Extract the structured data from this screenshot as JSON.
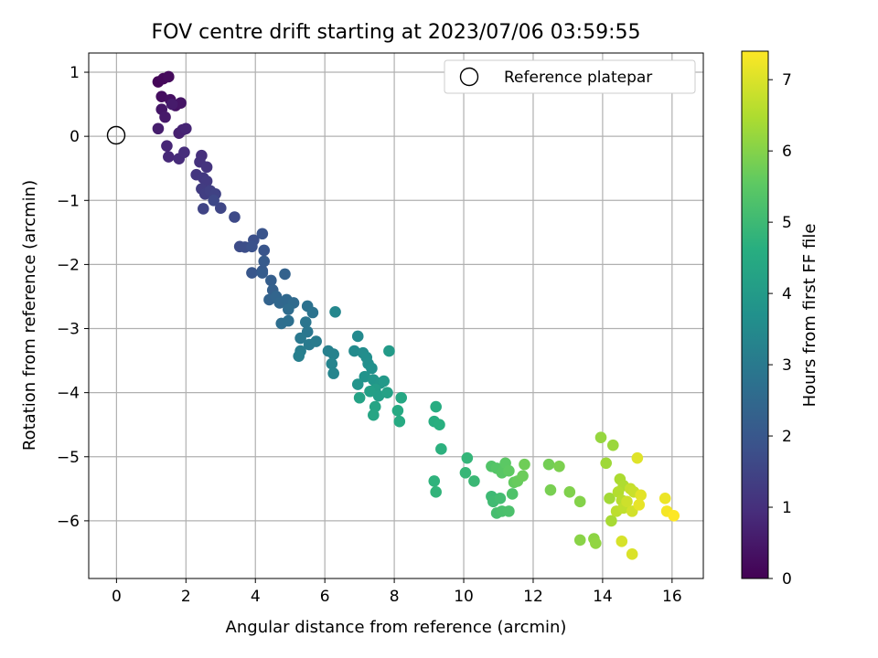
{
  "chart_data": {
    "type": "scatter",
    "title": "FOV centre drift starting at 2023/07/06 03:59:55",
    "xlabel": "Angular distance from reference (arcmin)",
    "ylabel": "Rotation from reference (arcmin)",
    "xlim": [
      -0.8,
      16.9
    ],
    "ylim": [
      -6.9,
      1.3
    ],
    "xticks": [
      0,
      2,
      4,
      6,
      8,
      10,
      12,
      14,
      16
    ],
    "yticks": [
      1,
      0,
      -1,
      -2,
      -3,
      -4,
      -5,
      -6
    ],
    "grid": true,
    "legend": {
      "position": "top-right",
      "entries": [
        "Reference platepar"
      ]
    },
    "reference_point": {
      "x": 0,
      "y": 0,
      "label": "Reference platepar"
    },
    "colorbar": {
      "label": "Hours from first FF file",
      "range": [
        0,
        7.4
      ],
      "ticks": [
        0,
        1,
        2,
        3,
        4,
        5,
        6,
        7
      ],
      "colormap": "viridis"
    },
    "points": [
      [
        1.2,
        0.85,
        0.1
      ],
      [
        1.35,
        0.9,
        0.15
      ],
      [
        1.5,
        0.93,
        0.2
      ],
      [
        1.3,
        0.62,
        0.25
      ],
      [
        1.55,
        0.57,
        0.3
      ],
      [
        1.7,
        0.48,
        0.35
      ],
      [
        1.85,
        0.52,
        0.4
      ],
      [
        1.3,
        0.42,
        0.45
      ],
      [
        1.4,
        0.3,
        0.5
      ],
      [
        1.6,
        0.5,
        0.55
      ],
      [
        1.2,
        0.12,
        0.6
      ],
      [
        1.8,
        0.05,
        0.65
      ],
      [
        1.9,
        0.1,
        0.7
      ],
      [
        2.0,
        0.12,
        0.75
      ],
      [
        1.45,
        -0.15,
        0.8
      ],
      [
        1.5,
        -0.32,
        0.85
      ],
      [
        1.8,
        -0.35,
        0.9
      ],
      [
        1.95,
        -0.25,
        0.95
      ],
      [
        2.45,
        -0.3,
        1.0
      ],
      [
        2.4,
        -0.4,
        1.05
      ],
      [
        2.6,
        -0.48,
        1.1
      ],
      [
        2.3,
        -0.6,
        1.15
      ],
      [
        2.5,
        -0.65,
        1.2
      ],
      [
        2.6,
        -0.7,
        1.25
      ],
      [
        2.45,
        -0.82,
        1.3
      ],
      [
        2.55,
        -0.9,
        1.35
      ],
      [
        2.7,
        -0.85,
        1.4
      ],
      [
        2.85,
        -0.9,
        1.45
      ],
      [
        2.5,
        -1.13,
        1.5
      ],
      [
        3.0,
        -1.12,
        1.55
      ],
      [
        2.8,
        -1.0,
        1.6
      ],
      [
        3.4,
        -1.26,
        1.65
      ],
      [
        3.55,
        -1.72,
        1.7
      ],
      [
        3.7,
        -1.73,
        1.75
      ],
      [
        3.95,
        -1.62,
        1.8
      ],
      [
        3.9,
        -1.72,
        1.85
      ],
      [
        4.2,
        -1.52,
        1.9
      ],
      [
        4.25,
        -1.78,
        1.95
      ],
      [
        3.9,
        -2.13,
        2.0
      ],
      [
        4.2,
        -2.1,
        2.05
      ],
      [
        4.25,
        -1.95,
        2.1
      ],
      [
        4.2,
        -2.13,
        2.15
      ],
      [
        4.45,
        -2.25,
        2.2
      ],
      [
        4.5,
        -2.4,
        2.25
      ],
      [
        4.85,
        -2.15,
        2.3
      ],
      [
        4.4,
        -2.55,
        2.35
      ],
      [
        4.6,
        -2.5,
        2.4
      ],
      [
        4.7,
        -2.6,
        2.45
      ],
      [
        4.9,
        -2.55,
        2.5
      ],
      [
        5.1,
        -2.6,
        2.55
      ],
      [
        4.95,
        -2.7,
        2.6
      ],
      [
        4.75,
        -2.92,
        2.65
      ],
      [
        4.95,
        -2.88,
        2.7
      ],
      [
        5.5,
        -2.65,
        2.75
      ],
      [
        5.65,
        -2.75,
        2.8
      ],
      [
        5.45,
        -2.9,
        2.85
      ],
      [
        5.5,
        -3.05,
        2.9
      ],
      [
        5.3,
        -3.15,
        2.95
      ],
      [
        5.55,
        -3.25,
        3.0
      ],
      [
        5.75,
        -3.2,
        3.05
      ],
      [
        5.3,
        -3.35,
        3.1
      ],
      [
        5.25,
        -3.43,
        3.15
      ],
      [
        6.1,
        -3.35,
        3.2
      ],
      [
        6.25,
        -3.4,
        3.25
      ],
      [
        6.2,
        -3.55,
        3.3
      ],
      [
        6.25,
        -3.7,
        3.35
      ],
      [
        6.3,
        -2.74,
        3.4
      ],
      [
        6.95,
        -3.12,
        3.45
      ],
      [
        6.85,
        -3.35,
        3.5
      ],
      [
        7.1,
        -3.38,
        3.55
      ],
      [
        7.2,
        -3.45,
        3.6
      ],
      [
        7.25,
        -3.55,
        3.65
      ],
      [
        7.35,
        -3.62,
        3.7
      ],
      [
        7.15,
        -3.75,
        3.75
      ],
      [
        6.95,
        -3.87,
        3.8
      ],
      [
        7.4,
        -3.8,
        3.85
      ],
      [
        7.6,
        -3.85,
        3.9
      ],
      [
        7.7,
        -3.82,
        3.95
      ],
      [
        7.85,
        -3.35,
        4.0
      ],
      [
        7.45,
        -3.95,
        4.05
      ],
      [
        7.55,
        -4.05,
        4.1
      ],
      [
        7.3,
        -3.98,
        4.15
      ],
      [
        7.8,
        -4.0,
        4.2
      ],
      [
        7.0,
        -4.08,
        4.25
      ],
      [
        7.45,
        -4.22,
        4.3
      ],
      [
        7.4,
        -4.35,
        4.35
      ],
      [
        8.2,
        -4.08,
        4.4
      ],
      [
        8.1,
        -4.28,
        4.45
      ],
      [
        8.15,
        -4.45,
        4.5
      ],
      [
        9.2,
        -4.22,
        4.55
      ],
      [
        9.15,
        -4.45,
        4.6
      ],
      [
        9.3,
        -4.5,
        4.65
      ],
      [
        9.35,
        -4.88,
        4.7
      ],
      [
        9.15,
        -5.38,
        4.75
      ],
      [
        9.2,
        -5.55,
        4.8
      ],
      [
        10.1,
        -5.02,
        4.85
      ],
      [
        10.05,
        -5.25,
        4.9
      ],
      [
        10.3,
        -5.38,
        4.95
      ],
      [
        10.8,
        -5.62,
        5.0
      ],
      [
        10.85,
        -5.7,
        5.05
      ],
      [
        11.05,
        -5.65,
        5.1
      ],
      [
        10.95,
        -5.88,
        5.15
      ],
      [
        11.1,
        -5.85,
        5.2
      ],
      [
        11.3,
        -5.85,
        5.25
      ],
      [
        11.4,
        -5.58,
        5.3
      ],
      [
        10.8,
        -5.15,
        5.35
      ],
      [
        10.95,
        -5.18,
        5.4
      ],
      [
        11.1,
        -5.25,
        5.45
      ],
      [
        11.2,
        -5.1,
        5.5
      ],
      [
        11.3,
        -5.22,
        5.55
      ],
      [
        11.45,
        -5.4,
        5.6
      ],
      [
        11.55,
        -5.38,
        5.65
      ],
      [
        11.7,
        -5.3,
        5.7
      ],
      [
        11.75,
        -5.12,
        5.75
      ],
      [
        12.45,
        -5.12,
        5.8
      ],
      [
        12.5,
        -5.52,
        5.85
      ],
      [
        12.75,
        -5.15,
        5.9
      ],
      [
        13.05,
        -5.55,
        5.95
      ],
      [
        13.35,
        -5.7,
        6.0
      ],
      [
        13.35,
        -6.3,
        6.05
      ],
      [
        13.75,
        -6.28,
        6.1
      ],
      [
        13.8,
        -6.35,
        6.15
      ],
      [
        13.95,
        -4.7,
        6.2
      ],
      [
        14.3,
        -4.82,
        6.25
      ],
      [
        14.1,
        -5.1,
        6.3
      ],
      [
        14.2,
        -5.65,
        6.35
      ],
      [
        14.25,
        -6.0,
        6.4
      ],
      [
        14.5,
        -5.35,
        6.45
      ],
      [
        14.6,
        -5.45,
        6.5
      ],
      [
        14.45,
        -5.55,
        6.55
      ],
      [
        14.55,
        -5.68,
        6.6
      ],
      [
        14.4,
        -5.85,
        6.65
      ],
      [
        14.6,
        -5.8,
        6.7
      ],
      [
        14.8,
        -5.5,
        6.75
      ],
      [
        14.9,
        -5.55,
        6.8
      ],
      [
        14.7,
        -5.7,
        6.85
      ],
      [
        14.85,
        -5.85,
        6.9
      ],
      [
        14.55,
        -6.32,
        6.95
      ],
      [
        14.85,
        -6.52,
        7.0
      ],
      [
        15.0,
        -5.02,
        7.05
      ],
      [
        15.1,
        -5.6,
        7.1
      ],
      [
        15.05,
        -5.75,
        7.15
      ],
      [
        15.8,
        -5.65,
        7.2
      ],
      [
        15.85,
        -5.85,
        7.3
      ],
      [
        16.05,
        -5.92,
        7.4
      ]
    ]
  }
}
